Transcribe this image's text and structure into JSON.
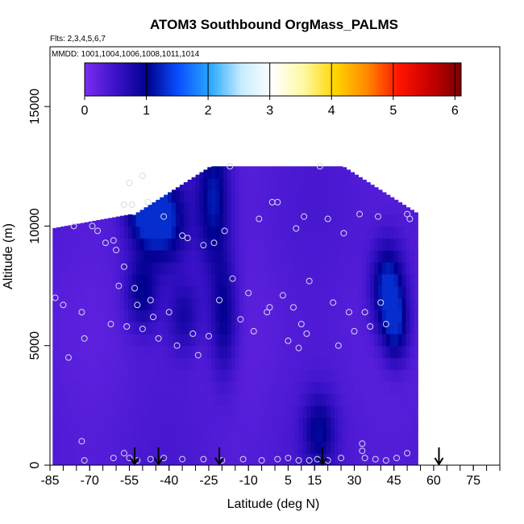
{
  "chart_data": {
    "type": "heatmap",
    "title": "ATOM3 Southbound OrgMass_PALMS",
    "subtitle_flights": "Flts: 2,3,4,5,6,7",
    "subtitle_dates": "MMDD: 1001,1004,1006,1008,1011,1014",
    "xlabel": "Latitude (deg N)",
    "ylabel": "Altitude (m)",
    "xlim": [
      -85,
      85
    ],
    "ylim": [
      0,
      17500
    ],
    "x_tick_labels": [
      "-85",
      "-70",
      "-55",
      "-40",
      "-25",
      "-10",
      "5",
      "15",
      "30",
      "45",
      "60",
      "75"
    ],
    "x_tick_values": [
      -85,
      -70,
      -55,
      -40,
      -25,
      -10,
      5,
      15,
      30,
      45,
      60,
      75
    ],
    "y_tick_labels": [
      "0",
      "5000",
      "10000",
      "15000"
    ],
    "y_tick_values": [
      0,
      5000,
      10000,
      15000
    ],
    "colorbar": {
      "range": [
        0,
        6.1
      ],
      "tick_labels": [
        "0",
        "1",
        "2",
        "3",
        "4",
        "5",
        "6"
      ],
      "tick_values": [
        0,
        1,
        2,
        3,
        4,
        5,
        6
      ],
      "colors": [
        "#7a2df0",
        "#3a12c8",
        "#00008f",
        "#0a50ff",
        "#28a8ff",
        "#c8ecff",
        "#ffffff",
        "#fff8a0",
        "#ffd400",
        "#ff8800",
        "#ff1500",
        "#c80000",
        "#7a0000"
      ]
    },
    "arrow_latitudes": [
      -53,
      -44,
      -21,
      18,
      62
    ],
    "field_value_range": [
      0.2,
      1.3
    ],
    "observation_points": [
      {
        "lat": -83,
        "alt": 7000
      },
      {
        "lat": -80,
        "alt": 6700
      },
      {
        "lat": -78,
        "alt": 4500
      },
      {
        "lat": -76,
        "alt": 10000
      },
      {
        "lat": -73,
        "alt": 6400
      },
      {
        "lat": -72,
        "alt": 5300
      },
      {
        "lat": -69,
        "alt": 10000
      },
      {
        "lat": -67,
        "alt": 9800
      },
      {
        "lat": -64,
        "alt": 9300
      },
      {
        "lat": -62,
        "alt": 5900
      },
      {
        "lat": -61,
        "alt": 9400
      },
      {
        "lat": -60,
        "alt": 9000
      },
      {
        "lat": -59,
        "alt": 7500
      },
      {
        "lat": -57,
        "alt": 10900
      },
      {
        "lat": -57,
        "alt": 8300
      },
      {
        "lat": -56,
        "alt": 5800
      },
      {
        "lat": -55,
        "alt": 11800
      },
      {
        "lat": -54,
        "alt": 10900
      },
      {
        "lat": -53,
        "alt": 7400
      },
      {
        "lat": -52,
        "alt": 6700
      },
      {
        "lat": -50,
        "alt": 12100
      },
      {
        "lat": -50,
        "alt": 5700
      },
      {
        "lat": -48,
        "alt": 11000
      },
      {
        "lat": -47,
        "alt": 6900
      },
      {
        "lat": -46,
        "alt": 6200
      },
      {
        "lat": -44,
        "alt": 5300
      },
      {
        "lat": -42,
        "alt": 10400
      },
      {
        "lat": -40,
        "alt": 6400
      },
      {
        "lat": -37,
        "alt": 5000
      },
      {
        "lat": -35,
        "alt": 9600
      },
      {
        "lat": -33,
        "alt": 9500
      },
      {
        "lat": -31,
        "alt": 5500
      },
      {
        "lat": -29,
        "alt": 4600
      },
      {
        "lat": -27,
        "alt": 9200
      },
      {
        "lat": -25,
        "alt": 5400
      },
      {
        "lat": -23,
        "alt": 9300
      },
      {
        "lat": -21,
        "alt": 6900
      },
      {
        "lat": -19,
        "alt": 9800
      },
      {
        "lat": -17,
        "alt": 12500
      },
      {
        "lat": -16,
        "alt": 7800
      },
      {
        "lat": -13,
        "alt": 6100
      },
      {
        "lat": -10,
        "alt": 7200
      },
      {
        "lat": -8,
        "alt": 5600
      },
      {
        "lat": -6,
        "alt": 10300
      },
      {
        "lat": -3,
        "alt": 6400
      },
      {
        "lat": -2,
        "alt": 6600
      },
      {
        "lat": -1,
        "alt": 11000
      },
      {
        "lat": 1,
        "alt": 11000
      },
      {
        "lat": 3,
        "alt": 7100
      },
      {
        "lat": 5,
        "alt": 5200
      },
      {
        "lat": 7,
        "alt": 6600
      },
      {
        "lat": 8,
        "alt": 9900
      },
      {
        "lat": 9,
        "alt": 4900
      },
      {
        "lat": 10,
        "alt": 5900
      },
      {
        "lat": 11,
        "alt": 10400
      },
      {
        "lat": 12,
        "alt": 5500
      },
      {
        "lat": 13,
        "alt": 7700
      },
      {
        "lat": 17,
        "alt": 12500
      },
      {
        "lat": 20,
        "alt": 10300
      },
      {
        "lat": 22,
        "alt": 6800
      },
      {
        "lat": 24,
        "alt": 5000
      },
      {
        "lat": 26,
        "alt": 9700
      },
      {
        "lat": 28,
        "alt": 6400
      },
      {
        "lat": 30,
        "alt": 5600
      },
      {
        "lat": 32,
        "alt": 10500
      },
      {
        "lat": 34,
        "alt": 6400
      },
      {
        "lat": 36,
        "alt": 5800
      },
      {
        "lat": 39,
        "alt": 10400
      },
      {
        "lat": 40,
        "alt": 6800
      },
      {
        "lat": 42,
        "alt": 5900
      },
      {
        "lat": 50,
        "alt": 10500
      },
      {
        "lat": 51,
        "alt": 10300
      },
      {
        "lat": -72,
        "alt": 200
      },
      {
        "lat": -61,
        "alt": 300
      },
      {
        "lat": -57,
        "alt": 500
      },
      {
        "lat": -55,
        "alt": 300
      },
      {
        "lat": -52,
        "alt": 200
      },
      {
        "lat": -47,
        "alt": 250
      },
      {
        "lat": -42,
        "alt": 300
      },
      {
        "lat": -35,
        "alt": 250
      },
      {
        "lat": -27,
        "alt": 250
      },
      {
        "lat": -20,
        "alt": 200
      },
      {
        "lat": -12,
        "alt": 250
      },
      {
        "lat": -5,
        "alt": 200
      },
      {
        "lat": 1,
        "alt": 250
      },
      {
        "lat": 5,
        "alt": 300
      },
      {
        "lat": 9,
        "alt": 200
      },
      {
        "lat": 13,
        "alt": 200
      },
      {
        "lat": 16,
        "alt": 250
      },
      {
        "lat": 20,
        "alt": 200
      },
      {
        "lat": 25,
        "alt": 300
      },
      {
        "lat": 33,
        "alt": 900
      },
      {
        "lat": 33,
        "alt": 600
      },
      {
        "lat": 34,
        "alt": 300
      },
      {
        "lat": 38,
        "alt": 250
      },
      {
        "lat": 42,
        "alt": 200
      },
      {
        "lat": 46,
        "alt": 300
      },
      {
        "lat": 50,
        "alt": 500
      },
      {
        "lat": -73,
        "alt": 1000
      }
    ]
  }
}
